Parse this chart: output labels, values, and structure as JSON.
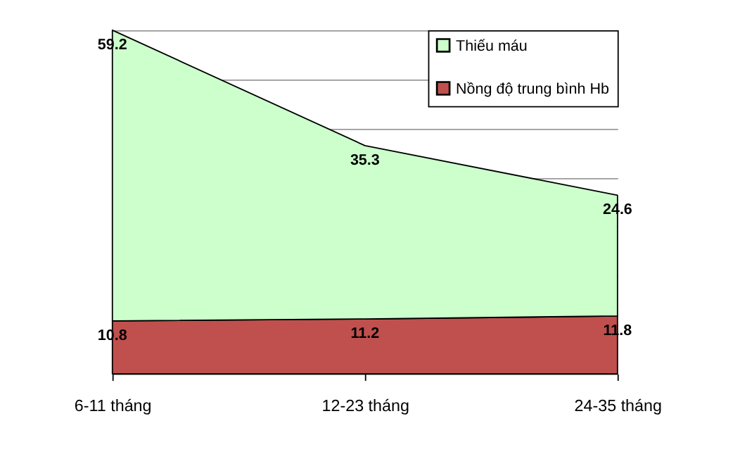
{
  "chart_data": {
    "type": "area",
    "stacked": true,
    "categories": [
      "6-11 tháng",
      "12-23 tháng",
      "24-35 tháng"
    ],
    "series": [
      {
        "name": "Nồng độ trung bình Hb",
        "color": "#c0504d",
        "values": [
          10.8,
          11.2,
          11.8
        ]
      },
      {
        "name": "Thiếu máu",
        "color": "#ccffcc",
        "values": [
          59.2,
          35.3,
          24.6
        ]
      }
    ],
    "tick_labels": "x",
    "grid": "y",
    "legend": "top right",
    "data_labels": true
  }
}
